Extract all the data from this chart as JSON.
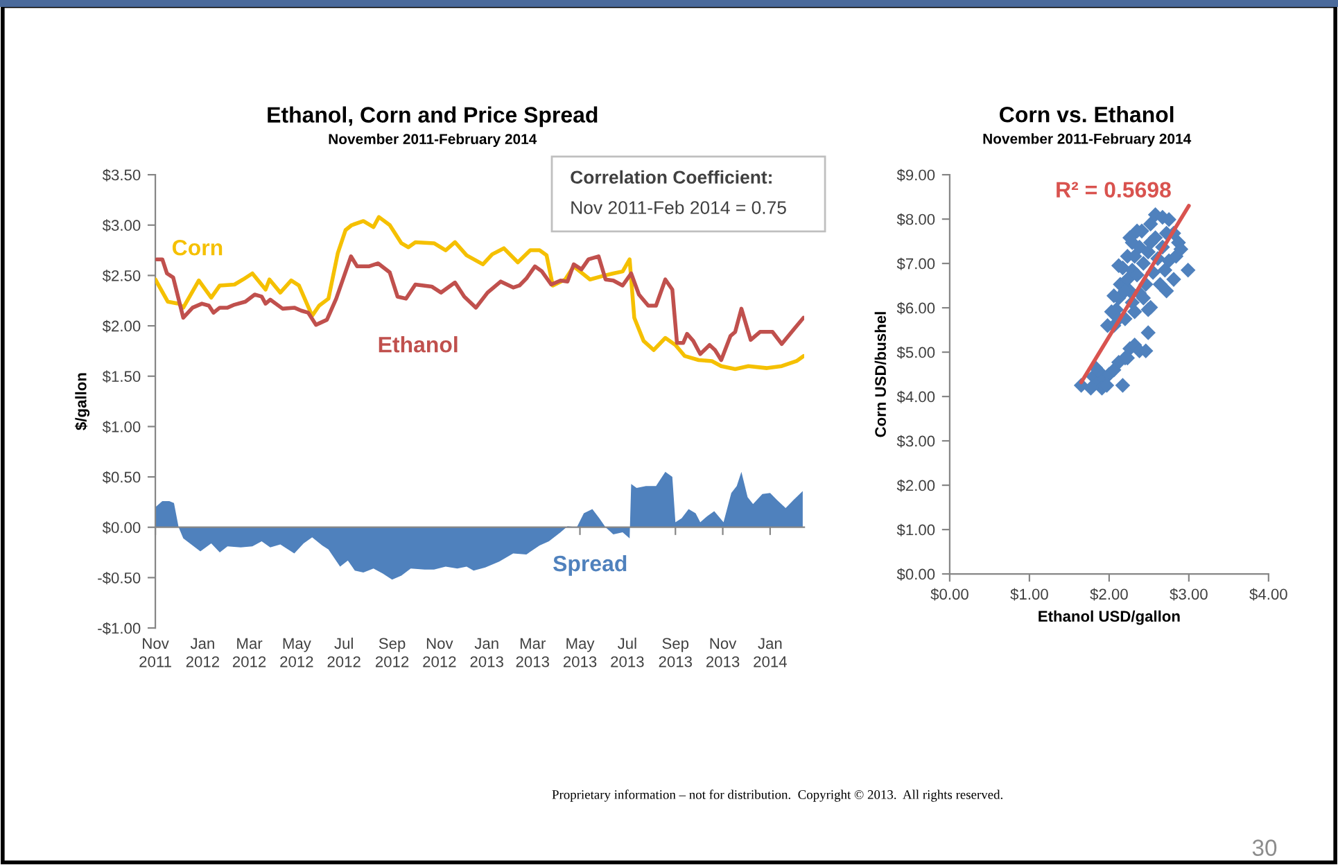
{
  "chart_data": [
    {
      "type": "line",
      "title": "Ethanol, Corn and Price Spread",
      "subtitle": "November 2011-February 2014",
      "ylabel": "$/gallon",
      "xlim": [
        "2011-11-01",
        "2014-02-14"
      ],
      "xticks": [
        {
          "value": "2011-11",
          "label": "Nov\n2011"
        },
        {
          "value": "2012-01",
          "label": "Jan\n2012"
        },
        {
          "value": "2012-03",
          "label": "Mar\n2012"
        },
        {
          "value": "2012-05",
          "label": "May\n2012"
        },
        {
          "value": "2012-07",
          "label": "Jul\n2012"
        },
        {
          "value": "2012-09",
          "label": "Sep\n2012"
        },
        {
          "value": "2012-11",
          "label": "Nov\n2012"
        },
        {
          "value": "2013-01",
          "label": "Jan\n2013"
        },
        {
          "value": "2013-03",
          "label": "Mar\n2013"
        },
        {
          "value": "2013-05",
          "label": "May\n2013"
        },
        {
          "value": "2013-07",
          "label": "Jul\n2013"
        },
        {
          "value": "2013-09",
          "label": "Sep\n2013"
        },
        {
          "value": "2013-11",
          "label": "Nov\n2013"
        },
        {
          "value": "2014-01",
          "label": "Jan\n2014"
        }
      ],
      "ylim": [
        -1,
        3.5
      ],
      "yticks": [
        {
          "value": -1,
          "label": "-$1.00"
        },
        {
          "value": -0.5,
          "label": "-$0.50"
        },
        {
          "value": 0,
          "label": "$0.00"
        },
        {
          "value": 0.5,
          "label": "$0.50"
        },
        {
          "value": 1,
          "label": "$1.00"
        },
        {
          "value": 1.5,
          "label": "$1.50"
        },
        {
          "value": 2,
          "label": "$2.00"
        },
        {
          "value": 2.5,
          "label": "$2.50"
        },
        {
          "value": 3,
          "label": "$3.00"
        },
        {
          "value": 3.5,
          "label": "$3.50"
        }
      ],
      "annotations": [
        "Correlation Coefficient:",
        "Nov 2011-Feb 2014 = 0.75"
      ],
      "series": [
        {
          "name": "Corn",
          "color": "#f5c000",
          "x": [
            "2011-11-01",
            "2011-11-17",
            "2011-12-01",
            "2011-12-07",
            "2011-12-27",
            "2012-01-12",
            "2012-01-23",
            "2012-02-11",
            "2012-02-22",
            "2012-03-05",
            "2012-03-22",
            "2012-03-27",
            "2012-04-10",
            "2012-04-24",
            "2012-05-04",
            "2012-05-21",
            "2012-05-30",
            "2012-06-11",
            "2012-06-23",
            "2012-07-03",
            "2012-07-11",
            "2012-07-26",
            "2012-08-08",
            "2012-08-15",
            "2012-08-29",
            "2012-09-13",
            "2012-09-22",
            "2012-10-01",
            "2012-10-25",
            "2012-11-09",
            "2012-11-21",
            "2012-12-06",
            "2012-12-27",
            "2013-01-08",
            "2013-01-23",
            "2013-02-10",
            "2013-02-26",
            "2013-03-10",
            "2013-03-19",
            "2013-03-27",
            "2013-04-12",
            "2013-04-23",
            "2013-05-14",
            "2013-06-02",
            "2013-06-13",
            "2013-06-25",
            "2013-07-04",
            "2013-07-10",
            "2013-07-22",
            "2013-08-04",
            "2013-08-19",
            "2013-09-01",
            "2013-09-13",
            "2013-10-01",
            "2013-10-18",
            "2013-10-30",
            "2013-11-17",
            "2013-12-04",
            "2013-12-28",
            "2014-01-16",
            "2014-02-04",
            "2014-02-13"
          ],
          "values": [
            2.46,
            2.24,
            2.22,
            2.18,
            2.45,
            2.28,
            2.4,
            2.41,
            2.46,
            2.52,
            2.36,
            2.46,
            2.33,
            2.45,
            2.4,
            2.1,
            2.2,
            2.27,
            2.72,
            2.95,
            3.0,
            3.04,
            2.98,
            3.08,
            3.0,
            2.82,
            2.78,
            2.83,
            2.82,
            2.75,
            2.83,
            2.7,
            2.61,
            2.71,
            2.77,
            2.63,
            2.75,
            2.75,
            2.7,
            2.4,
            2.46,
            2.59,
            2.46,
            2.5,
            2.52,
            2.54,
            2.66,
            2.08,
            1.85,
            1.76,
            1.88,
            1.81,
            1.7,
            1.66,
            1.65,
            1.6,
            1.57,
            1.6,
            1.58,
            1.6,
            1.65,
            1.7
          ]
        },
        {
          "name": "Ethanol",
          "color": "#c0504d",
          "x": [
            "2011-11-03",
            "2011-11-10",
            "2011-11-16",
            "2011-11-24",
            "2011-12-07",
            "2011-12-19",
            "2011-12-31",
            "2012-01-09",
            "2012-01-15",
            "2012-01-23",
            "2012-02-02",
            "2012-02-11",
            "2012-02-25",
            "2012-03-08",
            "2012-03-17",
            "2012-03-22",
            "2012-03-28",
            "2012-04-13",
            "2012-04-28",
            "2012-05-07",
            "2012-05-16",
            "2012-05-26",
            "2012-06-09",
            "2012-06-21",
            "2012-07-10",
            "2012-07-18",
            "2012-08-02",
            "2012-08-14",
            "2012-08-29",
            "2012-09-08",
            "2012-09-19",
            "2012-10-01",
            "2012-10-22",
            "2012-11-03",
            "2012-11-21",
            "2012-12-03",
            "2012-12-18",
            "2013-01-02",
            "2013-01-19",
            "2013-02-04",
            "2013-02-12",
            "2013-02-21",
            "2013-03-04",
            "2013-03-13",
            "2013-03-25",
            "2013-04-06",
            "2013-04-15",
            "2013-04-23",
            "2013-05-03",
            "2013-05-12",
            "2013-05-25",
            "2013-06-03",
            "2013-06-13",
            "2013-06-25",
            "2013-07-06",
            "2013-07-16",
            "2013-07-28",
            "2013-08-07",
            "2013-08-19",
            "2013-08-28",
            "2013-09-03",
            "2013-09-11",
            "2013-09-16",
            "2013-09-24",
            "2013-10-03",
            "2013-10-15",
            "2013-10-22",
            "2013-10-30",
            "2013-11-11",
            "2013-11-17",
            "2013-11-25",
            "2013-12-07",
            "2013-12-19",
            "2014-01-04",
            "2014-01-16",
            "2014-02-01",
            "2014-02-13"
          ],
          "values": [
            2.66,
            2.66,
            2.52,
            2.48,
            2.08,
            2.18,
            2.22,
            2.2,
            2.13,
            2.18,
            2.18,
            2.21,
            2.24,
            2.31,
            2.29,
            2.22,
            2.26,
            2.17,
            2.18,
            2.15,
            2.13,
            2.01,
            2.06,
            2.27,
            2.69,
            2.59,
            2.59,
            2.62,
            2.53,
            2.29,
            2.27,
            2.41,
            2.39,
            2.33,
            2.43,
            2.29,
            2.18,
            2.33,
            2.44,
            2.38,
            2.4,
            2.47,
            2.59,
            2.54,
            2.41,
            2.45,
            2.44,
            2.61,
            2.56,
            2.66,
            2.69,
            2.46,
            2.45,
            2.4,
            2.52,
            2.31,
            2.2,
            2.2,
            2.46,
            2.36,
            1.83,
            1.83,
            1.92,
            1.85,
            1.72,
            1.81,
            1.76,
            1.66,
            1.9,
            1.94,
            2.17,
            1.86,
            1.94,
            1.94,
            1.82,
            1.97,
            2.08
          ]
        },
        {
          "name": "Spread",
          "type": "area",
          "color": "#4f81bd",
          "x": [
            "2011-11-01",
            "2011-11-10",
            "2011-11-19",
            "2011-11-25",
            "2011-12-01",
            "2011-12-07",
            "2011-12-19",
            "2011-12-29",
            "2012-01-12",
            "2012-01-23",
            "2012-02-02",
            "2012-02-19",
            "2012-03-05",
            "2012-03-17",
            "2012-03-28",
            "2012-04-10",
            "2012-04-28",
            "2012-05-10",
            "2012-05-21",
            "2012-06-03",
            "2012-06-11",
            "2012-06-26",
            "2012-07-06",
            "2012-07-15",
            "2012-07-26",
            "2012-08-08",
            "2012-08-20",
            "2012-09-01",
            "2012-09-13",
            "2012-09-25",
            "2012-10-13",
            "2012-10-25",
            "2012-11-09",
            "2012-11-24",
            "2012-12-06",
            "2012-12-15",
            "2012-12-30",
            "2013-01-17",
            "2013-02-04",
            "2013-02-21",
            "2013-03-10",
            "2013-03-22",
            "2013-04-06",
            "2013-04-15",
            "2013-04-27",
            "2013-05-06",
            "2013-05-17",
            "2013-05-26",
            "2013-06-03",
            "2013-06-13",
            "2013-06-25",
            "2013-07-04",
            "2013-07-06",
            "2013-07-13",
            "2013-07-25",
            "2013-08-07",
            "2013-08-19",
            "2013-08-28",
            "2013-09-01",
            "2013-09-09",
            "2013-09-18",
            "2013-09-27",
            "2013-10-03",
            "2013-10-12",
            "2013-10-21",
            "2013-11-02",
            "2013-11-12",
            "2013-11-19",
            "2013-11-25",
            "2013-12-03",
            "2013-12-10",
            "2013-12-22",
            "2014-01-01",
            "2014-01-10",
            "2014-01-21",
            "2014-01-31",
            "2014-02-12"
          ],
          "values": [
            0.2,
            0.26,
            0.26,
            0.24,
            0.0,
            -0.11,
            -0.18,
            -0.24,
            -0.16,
            -0.25,
            -0.19,
            -0.2,
            -0.19,
            -0.14,
            -0.2,
            -0.17,
            -0.26,
            -0.16,
            -0.1,
            -0.18,
            -0.22,
            -0.39,
            -0.33,
            -0.43,
            -0.45,
            -0.41,
            -0.46,
            -0.52,
            -0.48,
            -0.41,
            -0.42,
            -0.42,
            -0.39,
            -0.41,
            -0.39,
            -0.43,
            -0.4,
            -0.34,
            -0.26,
            -0.27,
            -0.18,
            -0.14,
            -0.05,
            0.01,
            0.0,
            0.14,
            0.18,
            0.09,
            0.0,
            -0.07,
            -0.05,
            -0.11,
            0.43,
            0.39,
            0.41,
            0.41,
            0.55,
            0.5,
            0.05,
            0.09,
            0.18,
            0.14,
            0.05,
            0.11,
            0.16,
            0.05,
            0.34,
            0.41,
            0.55,
            0.3,
            0.23,
            0.33,
            0.34,
            0.27,
            0.19,
            0.27,
            0.36
          ]
        }
      ]
    },
    {
      "type": "scatter",
      "title": "Corn vs. Ethanol",
      "subtitle": "November 2011-February 2014",
      "xlabel": "Ethanol USD/gallon",
      "ylabel": "Corn USD/bushel",
      "xlim": [
        0,
        4
      ],
      "xticks": [
        {
          "value": 0,
          "label": "$0.00"
        },
        {
          "value": 1,
          "label": "$1.00"
        },
        {
          "value": 2,
          "label": "$2.00"
        },
        {
          "value": 3,
          "label": "$3.00"
        },
        {
          "value": 4,
          "label": "$4.00"
        }
      ],
      "ylim": [
        0,
        9
      ],
      "yticks": [
        {
          "value": 0,
          "label": "$0.00"
        },
        {
          "value": 1,
          "label": "$1.00"
        },
        {
          "value": 2,
          "label": "$2.00"
        },
        {
          "value": 3,
          "label": "$3.00"
        },
        {
          "value": 4,
          "label": "$4.00"
        },
        {
          "value": 5,
          "label": "$5.00"
        },
        {
          "value": 6,
          "label": "$6.00"
        },
        {
          "value": 7,
          "label": "$7.00"
        },
        {
          "value": 8,
          "label": "$8.00"
        },
        {
          "value": 9,
          "label": "$9.00"
        }
      ],
      "annotations": [
        {
          "text": "R² = 0.5698",
          "x": 3.0,
          "y": 8.3
        },
        "Proprietary information – not for distribution.  Copyright © 2013.  All rights reserved.",
        "30"
      ],
      "series": [
        {
          "type": "scatter",
          "marker": "diamond",
          "color": "#4f81bd",
          "x": [
            1.65,
            1.8,
            1.86,
            1.88,
            1.94,
            1.91,
            1.83,
            2.0,
            1.97,
            1.77,
            2.06,
            2.17,
            2.12,
            2.2,
            2.26,
            2.32,
            2.38,
            2.46,
            2.49,
            2.49,
            2.23,
            1.98,
            2.03,
            2.09,
            2.12,
            2.06,
            2.14,
            2.17,
            2.23,
            2.23,
            2.26,
            2.29,
            2.29,
            2.32,
            2.35,
            2.38,
            2.38,
            2.41,
            2.43,
            2.46,
            2.49,
            2.52,
            2.55,
            2.58,
            2.58,
            2.61,
            2.64,
            2.67,
            2.67,
            2.7,
            2.72,
            2.75,
            2.81,
            2.84,
            2.87,
            2.9,
            2.99,
            2.81,
            2.52,
            2.43,
            2.32,
            2.2,
            2.12,
            2.06,
            2.26,
            2.35,
            2.72,
            2.75,
            2.52,
            2.2,
            2.29,
            2.12
          ],
          "values": [
            4.25,
            4.45,
            4.3,
            4.55,
            4.4,
            4.19,
            4.65,
            4.5,
            4.25,
            4.19,
            4.6,
            4.25,
            4.77,
            4.87,
            5.08,
            5.16,
            5.03,
            5.03,
            5.44,
            5.96,
            4.87,
            5.6,
            5.91,
            5.96,
            6.22,
            6.27,
            6.53,
            6.9,
            7.16,
            6.64,
            6.38,
            6.85,
            7.47,
            7.16,
            6.74,
            7.37,
            6.33,
            7.73,
            7.0,
            6.53,
            7.26,
            7.89,
            6.8,
            7.58,
            8.1,
            7.11,
            6.53,
            8.04,
            7.37,
            6.85,
            6.38,
            7.06,
            6.64,
            7.16,
            7.47,
            7.32,
            6.85,
            7.68,
            6.01,
            6.22,
            5.91,
            5.75,
            5.75,
            5.6,
            7.58,
            7.73,
            7.68,
            7.99,
            7.47,
            6.38,
            6.12,
            6.95
          ]
        },
        {
          "type": "line",
          "color": "#d9534f",
          "x": [
            1.65,
            3.0
          ],
          "values": [
            4.32,
            8.3
          ]
        }
      ]
    }
  ]
}
